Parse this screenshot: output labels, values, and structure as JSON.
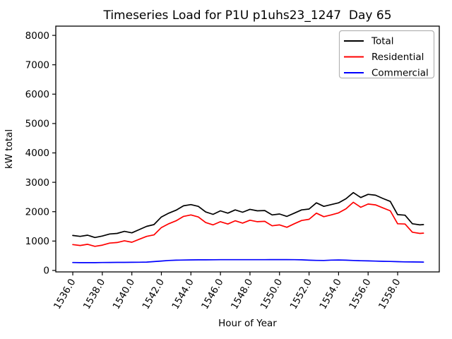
{
  "chart_data": {
    "type": "line",
    "title": "Timeseries Load for P1U p1uhs23_1247  Day 65",
    "xlabel": "Hour of Year",
    "ylabel": "kW total",
    "grid": false,
    "background_color": "#ffffff",
    "xlim": [
      1534.85,
      1560.82
    ],
    "ylim": [
      -50,
      8315
    ],
    "x_tick_labels": [
      "1536.0",
      "1538.0",
      "1540.0",
      "1542.0",
      "1544.0",
      "1546.0",
      "1548.0",
      "1550.0",
      "1552.0",
      "1554.0",
      "1556.0",
      "1558.0"
    ],
    "y_tick_labels": [
      "0",
      "1000",
      "2000",
      "3000",
      "4000",
      "5000",
      "6000",
      "7000",
      "8000"
    ],
    "x_tick_rotation_deg": 60,
    "legend": {
      "position": "upper right"
    },
    "x": [
      1536.0,
      1536.5,
      1537.0,
      1537.5,
      1538.0,
      1538.5,
      1539.0,
      1539.5,
      1540.0,
      1540.5,
      1541.0,
      1541.5,
      1542.0,
      1542.5,
      1543.0,
      1543.5,
      1544.0,
      1544.5,
      1545.0,
      1545.5,
      1546.0,
      1546.5,
      1547.0,
      1547.5,
      1548.0,
      1548.5,
      1549.0,
      1549.5,
      1550.0,
      1550.5,
      1551.0,
      1551.5,
      1552.0,
      1552.5,
      1553.0,
      1553.5,
      1554.0,
      1554.5,
      1555.0,
      1555.5,
      1556.0,
      1556.5,
      1557.0,
      1557.5,
      1558.0,
      1558.5,
      1559.0,
      1559.5,
      1559.75
    ],
    "series": [
      {
        "name": "Total",
        "color": "#000000",
        "values": [
          1190,
          1160,
          1200,
          1120,
          1170,
          1240,
          1260,
          1330,
          1280,
          1390,
          1500,
          1560,
          1820,
          1950,
          2050,
          2200,
          2240,
          2180,
          1990,
          1910,
          2030,
          1950,
          2060,
          1980,
          2080,
          2030,
          2040,
          1890,
          1920,
          1840,
          1950,
          2060,
          2090,
          2300,
          2180,
          2240,
          2300,
          2440,
          2650,
          2480,
          2590,
          2560,
          2450,
          2350,
          1900,
          1880,
          1590,
          1550,
          1560
        ]
      },
      {
        "name": "Residential",
        "color": "#ff0000",
        "values": [
          880,
          850,
          890,
          820,
          860,
          930,
          950,
          1010,
          960,
          1060,
          1160,
          1210,
          1460,
          1590,
          1690,
          1840,
          1890,
          1820,
          1630,
          1550,
          1660,
          1580,
          1690,
          1610,
          1710,
          1660,
          1670,
          1520,
          1550,
          1470,
          1590,
          1700,
          1740,
          1950,
          1830,
          1890,
          1960,
          2100,
          2320,
          2150,
          2260,
          2230,
          2130,
          2030,
          1590,
          1580,
          1300,
          1260,
          1270
        ]
      },
      {
        "name": "Commercial",
        "color": "#0000ff",
        "values": [
          270,
          265,
          265,
          265,
          270,
          272,
          275,
          275,
          278,
          280,
          285,
          300,
          320,
          340,
          350,
          355,
          358,
          360,
          362,
          363,
          365,
          365,
          366,
          366,
          366,
          366,
          367,
          368,
          368,
          368,
          366,
          362,
          350,
          342,
          340,
          352,
          356,
          350,
          340,
          330,
          325,
          318,
          310,
          305,
          298,
          292,
          288,
          286,
          285
        ]
      }
    ]
  }
}
